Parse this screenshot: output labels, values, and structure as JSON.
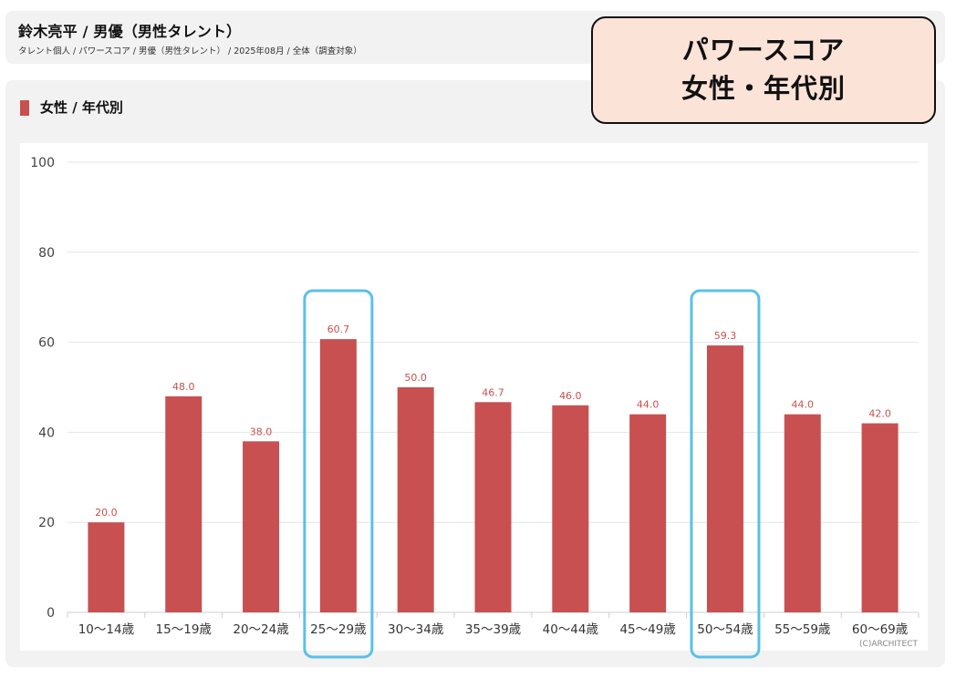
{
  "header": {
    "title": "鈴木亮平 / 男優（男性タレント）",
    "breadcrumb": "タレント個人 / パワースコア / 男優（男性タレント） / 2025年08月 / 全体（調査対象）"
  },
  "section": {
    "title": "女性 / 年代別"
  },
  "overlay": {
    "line1": "パワースコア",
    "line2": "女性・年代別"
  },
  "credit": "(C)ARCHITECT",
  "colors": {
    "bar": "#c85050",
    "highlight": "#5bc0e8",
    "overlay_bg": "#fbe3d8"
  },
  "highlighted_categories": [
    "25〜29歳",
    "50〜54歳"
  ],
  "chart_data": {
    "type": "bar",
    "categories": [
      "10〜14歳",
      "15〜19歳",
      "20〜24歳",
      "25〜29歳",
      "30〜34歳",
      "35〜39歳",
      "40〜44歳",
      "45〜49歳",
      "50〜54歳",
      "55〜59歳",
      "60〜69歳"
    ],
    "values": [
      20.0,
      48.0,
      38.0,
      60.7,
      50.0,
      46.7,
      46.0,
      44.0,
      59.3,
      44.0,
      42.0
    ],
    "data_labels": [
      "20.0",
      "48.0",
      "38.0",
      "60.7",
      "50.0",
      "46.7",
      "46.0",
      "44.0",
      "59.3",
      "44.0",
      "42.0"
    ],
    "yticks": [
      0,
      20,
      40,
      60,
      80,
      100
    ],
    "ylim": [
      0,
      100
    ],
    "title": "",
    "xlabel": "",
    "ylabel": "",
    "grid": true,
    "legend": "none"
  }
}
